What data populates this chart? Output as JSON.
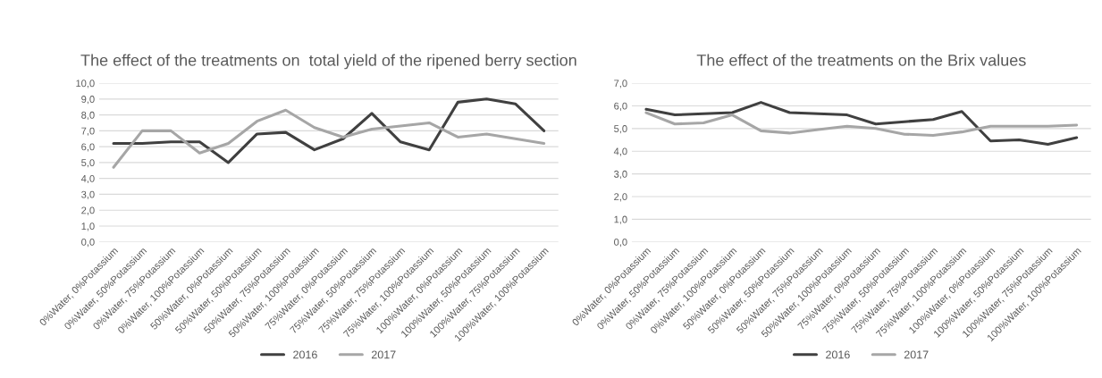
{
  "chart_data": [
    {
      "type": "line",
      "title": "The effect of the treatments on  total yield of the ripened berry section",
      "categories": [
        "0%Water, 0%Potassium",
        "0%Water, 50%Potassium",
        "0%Water, 75%Potassium",
        "0%Water, 100%Potassium",
        "50%Water, 0%Potassium",
        "50%Water, 50%Potassium",
        "50%Water, 75%Potassium",
        "50%Water, 100%Potassium",
        "75%Water, 0%Potassium",
        "75%Water, 50%Potassium",
        "75%Water, 75%Potassium",
        "75%Water, 100%Potassium",
        "100%Water, 0%Potassium",
        "100%Water, 50%Potassium",
        "100%Water, 75%Potassium",
        "100%Water, 100%Potassium"
      ],
      "series": [
        {
          "name": "2016",
          "color": "#404040",
          "values": [
            6.2,
            6.2,
            6.3,
            6.3,
            5.0,
            6.8,
            6.9,
            5.8,
            6.5,
            8.1,
            6.3,
            5.8,
            8.8,
            9.0,
            8.7,
            7.0
          ]
        },
        {
          "name": "2017",
          "color": "#a6a6a6",
          "values": [
            4.7,
            7.0,
            7.0,
            5.6,
            6.2,
            7.6,
            8.3,
            7.2,
            6.6,
            7.1,
            7.3,
            7.5,
            6.6,
            6.8,
            6.5,
            6.2
          ]
        }
      ],
      "ylim": [
        0,
        10
      ],
      "yticks": [
        {
          "value": 0,
          "label": "0,0"
        },
        {
          "value": 1,
          "label": "1,0"
        },
        {
          "value": 2,
          "label": "2,0"
        },
        {
          "value": 3,
          "label": "3,0"
        },
        {
          "value": 4,
          "label": "4,0"
        },
        {
          "value": 5,
          "label": "5,0"
        },
        {
          "value": 6,
          "label": "6,0"
        },
        {
          "value": 7,
          "label": "7,0"
        },
        {
          "value": 8,
          "label": "8,0"
        },
        {
          "value": 9,
          "label": "9,0"
        },
        {
          "value": 10,
          "label": "10,0"
        }
      ],
      "grid": "y",
      "legend": "bottom"
    },
    {
      "type": "line",
      "title": "The effect of the treatments on the Brix values",
      "categories": [
        "0%Water, 0%Potassium",
        "0%Water, 50%Potassium",
        "0%Water, 75%Potassium",
        "0%Water, 100%Potassium",
        "50%Water, 0%Potassium",
        "50%Water, 50%Potassium",
        "50%Water, 75%Potassium",
        "50%Water, 100%Potassium",
        "75%Water, 0%Potassium",
        "75%Water, 50%Potassium",
        "75%Water, 75%Potassium",
        "75%Water, 100%Potassium",
        "100%Water, 0%Potassium",
        "100%Water, 50%Potassium",
        "100%Water, 75%Potassium",
        "100%Water, 100%Potassium"
      ],
      "series": [
        {
          "name": "2016",
          "color": "#404040",
          "values": [
            5.85,
            5.6,
            5.65,
            5.7,
            6.15,
            5.7,
            5.65,
            5.6,
            5.2,
            5.3,
            5.4,
            5.75,
            4.45,
            4.5,
            4.3,
            4.6
          ]
        },
        {
          "name": "2017",
          "color": "#a6a6a6",
          "values": [
            5.7,
            5.2,
            5.25,
            5.6,
            4.9,
            4.8,
            4.95,
            5.1,
            5.0,
            4.75,
            4.7,
            4.85,
            5.1,
            5.1,
            5.1,
            5.15
          ]
        }
      ],
      "ylim": [
        0,
        7
      ],
      "yticks": [
        {
          "value": 0,
          "label": "0,0"
        },
        {
          "value": 1,
          "label": "1,0"
        },
        {
          "value": 2,
          "label": "2,0"
        },
        {
          "value": 3,
          "label": "3,0"
        },
        {
          "value": 4,
          "label": "4,0"
        },
        {
          "value": 5,
          "label": "5,0"
        },
        {
          "value": 6,
          "label": "6,0"
        },
        {
          "value": 7,
          "label": "7,0"
        }
      ],
      "grid": "y",
      "legend": "bottom"
    }
  ]
}
